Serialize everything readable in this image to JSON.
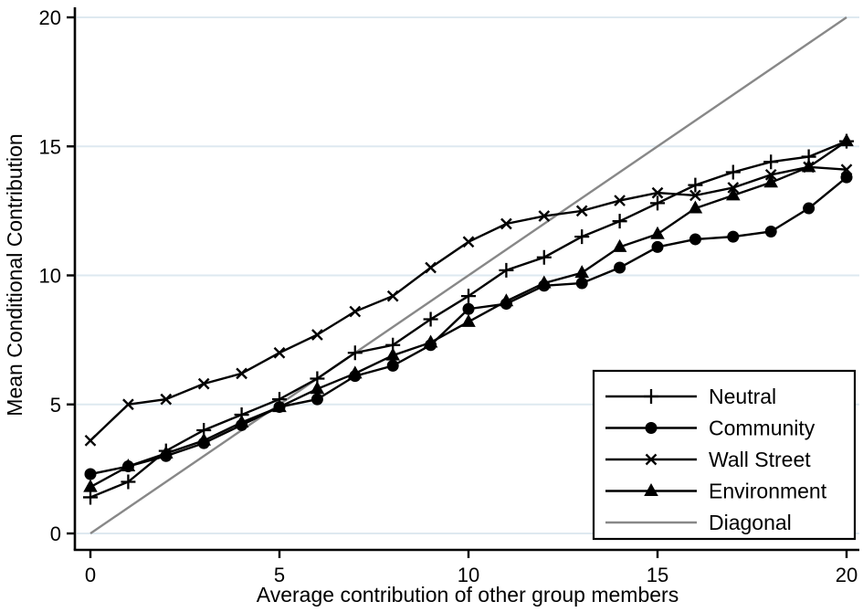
{
  "figure": {
    "background": "#ffffff",
    "plot_border_color": "#000000"
  },
  "chart_data": {
    "type": "line",
    "title": "",
    "xlabel": "Average contribution of other group members",
    "ylabel": "Mean Conditional Contribution",
    "xlim": [
      0,
      20
    ],
    "ylim": [
      0,
      20
    ],
    "xticks": [
      "0",
      "5",
      "10",
      "15",
      "20"
    ],
    "yticks": [
      "0",
      "5",
      "10",
      "15",
      "20"
    ],
    "grid": "horizontal-only",
    "gridline_color": "#dee9f0",
    "axis_color": "#000000",
    "x": [
      0,
      1,
      2,
      3,
      4,
      5,
      6,
      7,
      8,
      9,
      10,
      11,
      12,
      13,
      14,
      15,
      16,
      17,
      18,
      19,
      20
    ],
    "series": [
      {
        "name": "Neutral",
        "marker": "plus",
        "color": "#000000",
        "values": [
          1.4,
          2.0,
          3.2,
          4.0,
          4.6,
          5.2,
          6.0,
          7.0,
          7.3,
          8.3,
          9.2,
          10.2,
          10.7,
          11.5,
          12.1,
          12.8,
          13.5,
          14.0,
          14.4,
          14.6,
          15.2
        ]
      },
      {
        "name": "Community",
        "marker": "circle",
        "color": "#000000",
        "values": [
          2.3,
          2.6,
          3.0,
          3.5,
          4.2,
          4.9,
          5.2,
          6.1,
          6.5,
          7.3,
          8.7,
          8.9,
          9.6,
          9.7,
          10.3,
          11.1,
          11.4,
          11.5,
          11.7,
          12.6,
          13.8
        ]
      },
      {
        "name": "Wall Street",
        "marker": "x",
        "color": "#000000",
        "values": [
          3.6,
          5.0,
          5.2,
          5.8,
          6.2,
          7.0,
          7.7,
          8.6,
          9.2,
          10.3,
          11.3,
          12.0,
          12.3,
          12.5,
          12.9,
          13.2,
          13.1,
          13.4,
          13.9,
          14.2,
          14.1
        ]
      },
      {
        "name": "Environment",
        "marker": "triangle",
        "color": "#000000",
        "values": [
          1.8,
          2.6,
          3.1,
          3.6,
          4.3,
          4.9,
          5.6,
          6.2,
          6.9,
          7.4,
          8.2,
          9.0,
          9.7,
          10.1,
          11.1,
          11.6,
          12.6,
          13.1,
          13.6,
          14.2,
          15.2
        ]
      },
      {
        "name": "Diagonal",
        "marker": "none",
        "color": "#888888",
        "is_reference": true,
        "values": [
          0,
          1,
          2,
          3,
          4,
          5,
          6,
          7,
          8,
          9,
          10,
          11,
          12,
          13,
          14,
          15,
          16,
          17,
          18,
          19,
          20
        ]
      }
    ],
    "legend": {
      "position": "bottom-right",
      "entries": [
        "Neutral",
        "Community",
        "Wall Street",
        "Environment",
        "Diagonal"
      ]
    }
  }
}
